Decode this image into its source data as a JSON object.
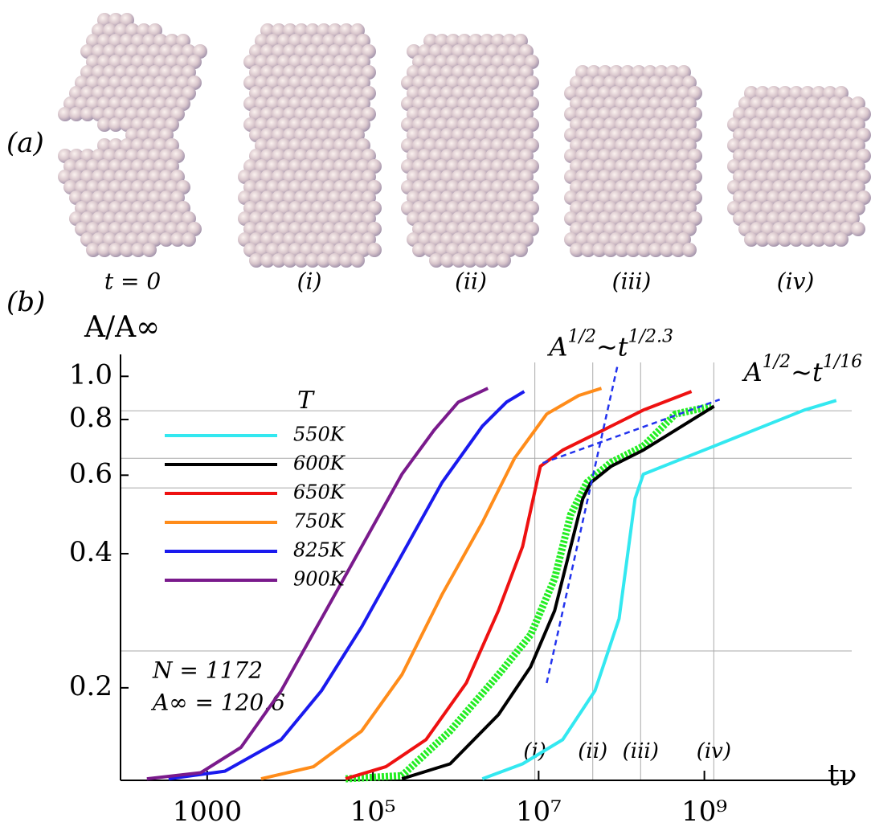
{
  "panel_a": {
    "label": "(a)",
    "labels": [
      "t = 0",
      "(i)",
      "(ii)",
      "(iii)",
      "(iv)"
    ]
  },
  "panel_b_label": "(b)",
  "chart_data": {
    "type": "line",
    "y_label": "A/A∞",
    "x_label": "tν",
    "log_x": true,
    "log_y": true,
    "xlim": [
      90,
      60000000000
    ],
    "ylim": [
      0.124,
      1.12
    ],
    "xticks": [
      1000,
      {
        "value": 100000,
        "label": "10⁵"
      },
      {
        "value": 10000000,
        "label": "10⁷"
      },
      {
        "value": 1000000000,
        "label": "10⁹"
      }
    ],
    "yticks": [
      0.2,
      0.4,
      0.6,
      0.8,
      {
        "value": 1,
        "label": "1.0"
      }
    ],
    "x_gridlines": [
      9000000,
      45000000,
      170000000,
      1300000000
    ],
    "y_gridlines": [
      0.837,
      0.655,
      0.562,
      0.242
    ],
    "time_markers": [
      "(i)",
      "(ii)",
      "(iii)",
      "(iv)"
    ],
    "legend_title": "T",
    "legend_position": "upper left",
    "annotations": [
      "N = 1172",
      "A∞ = 120.6"
    ],
    "series": [
      {
        "name": "550K",
        "color": "#33e8f0",
        "x": [
          2090000,
          6400000,
          19500000,
          47900000,
          93500000,
          146000000,
          183000000,
          560000000,
          1710000000,
          5230000000,
          16000000000,
          39100000000
        ],
        "values": [
          0.125,
          0.135,
          0.153,
          0.197,
          0.286,
          0.532,
          0.603,
          0.655,
          0.711,
          0.773,
          0.84,
          0.883
        ]
      },
      {
        "name": "600K",
        "color": "#000000",
        "x": [
          223900,
          855000,
          3270000,
          8000000,
          15600000,
          24400000,
          34200000,
          42800000,
          74800000,
          183000000,
          447000000,
          1310000000
        ],
        "values": [
          0.125,
          0.135,
          0.174,
          0.223,
          0.298,
          0.415,
          0.532,
          0.578,
          0.628,
          0.683,
          0.757,
          0.857
        ]
      },
      {
        "name": "650K",
        "color": "#ee1111",
        "x": [
          46770,
          142900,
          437500,
          1340000,
          3270000,
          6400000,
          10500000,
          19500000,
          59800000,
          183000000,
          700000000
        ],
        "values": [
          0.125,
          0.133,
          0.153,
          0.205,
          0.298,
          0.415,
          0.628,
          0.683,
          0.757,
          0.84,
          0.925
        ]
      },
      {
        "name": "750K",
        "color": "#ff8c1a",
        "x": [
          4467,
          19130,
          73110,
          223900,
          684000,
          2090000,
          5120000,
          12500000,
          30500000,
          57200000
        ],
        "values": [
          0.125,
          0.133,
          0.16,
          0.214,
          0.324,
          0.47,
          0.655,
          0.823,
          0.906,
          0.94
        ]
      },
      {
        "name": "825K",
        "color": "#1a1aee",
        "x": [
          342,
          1636,
          7816,
          23930,
          73110,
          223900,
          684000,
          2090000,
          4090000,
          6690000
        ],
        "values": [
          0.125,
          0.13,
          0.153,
          0.197,
          0.274,
          0.398,
          0.578,
          0.773,
          0.875,
          0.925
        ]
      },
      {
        "name": "900K",
        "color": "#7a1a8c",
        "x": [
          187,
          836,
          2559,
          7816,
          23930,
          73110,
          223900,
          547000,
          1070000,
          2440000
        ],
        "values": [
          0.125,
          0.129,
          0.147,
          0.197,
          0.286,
          0.415,
          0.603,
          0.757,
          0.875,
          0.94
        ]
      },
      {
        "color": "#22ee22",
        "x": [
          46770,
          223900,
          855000,
          3270000,
          8000000,
          15600000,
          24400000,
          38300000,
          74800000,
          183000000,
          447000000,
          1220000000
        ],
        "values": [
          0.125,
          0.127,
          0.16,
          0.214,
          0.263,
          0.352,
          0.49,
          0.578,
          0.641,
          0.697,
          0.823,
          0.857
        ]
      }
    ],
    "fit_lines": [
      {
        "label_parts": [
          "A",
          "1/2",
          "~t",
          "1/2.3"
        ],
        "color": "#2233ee",
        "x": [
          12500000,
          89300000
        ],
        "y": [
          0.205,
          1.055
        ]
      },
      {
        "label_parts": [
          "A",
          "1/2",
          "~t",
          "1/16"
        ],
        "color": "#2233ee",
        "x": [
          11200000,
          1530000000
        ],
        "y": [
          0.639,
          0.887
        ]
      }
    ]
  }
}
